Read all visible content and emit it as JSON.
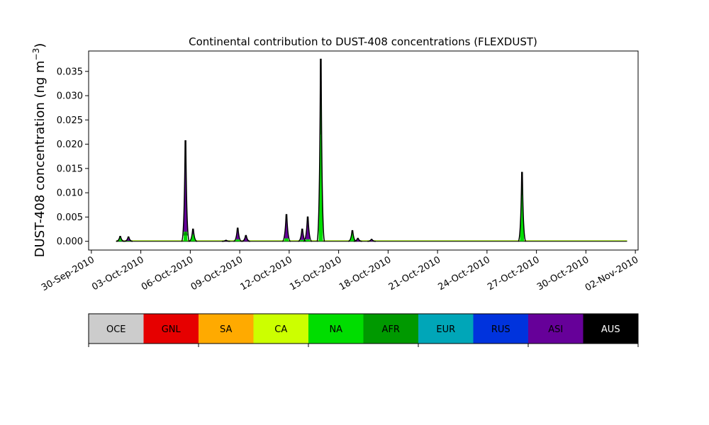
{
  "chart_data": {
    "type": "area",
    "title": "Continental contribution to DUST-408 concentrations (FLEXDUST)",
    "ylabel": "DUST-408 concentration (ng m",
    "ylabel_superscript": "−3",
    "ylabel_close": ")",
    "xlim": [
      "2010-09-29T20:00",
      "2010-11-02T04:00"
    ],
    "ylim": [
      -0.0018,
      0.0392
    ],
    "yticks": [
      0.0,
      0.005,
      0.01,
      0.015,
      0.02,
      0.025,
      0.03,
      0.035
    ],
    "ytick_labels": [
      "0.000",
      "0.005",
      "0.010",
      "0.015",
      "0.020",
      "0.025",
      "0.030",
      "0.035"
    ],
    "xticks": [
      "2010-09-30",
      "2010-10-03",
      "2010-10-06",
      "2010-10-09",
      "2010-10-12",
      "2010-10-15",
      "2010-10-18",
      "2010-10-21",
      "2010-10-24",
      "2010-10-27",
      "2010-10-30",
      "2010-11-02"
    ],
    "xtick_labels": [
      "30-Sep-2010",
      "03-Oct-2010",
      "06-Oct-2010",
      "09-Oct-2010",
      "12-Oct-2010",
      "15-Oct-2010",
      "18-Oct-2010",
      "21-Oct-2010",
      "24-Oct-2010",
      "27-Oct-2010",
      "30-Oct-2010",
      "02-Nov-2010"
    ],
    "series_start": "2010-10-01T12:00",
    "series_end": "2010-11-01T12:00",
    "peaks": [
      {
        "date": "2010-10-01T18:00",
        "total": 0.001,
        "NA": 0.0008,
        "ASI": 0.0001
      },
      {
        "date": "2010-10-02T06:00",
        "total": 0.0009,
        "NA": 0.0001,
        "ASI": 0.0007
      },
      {
        "date": "2010-10-05T17:00",
        "total": 0.0207,
        "NA": 0.0012,
        "AFR": 0.0008,
        "ASI": 0.0175
      },
      {
        "date": "2010-10-06T04:00",
        "total": 0.0025,
        "NA": 0.0015,
        "ASI": 0.0007
      },
      {
        "date": "2010-10-08T04:00",
        "total": 0.0002,
        "ASI": 0.0002
      },
      {
        "date": "2010-10-08T21:00",
        "total": 0.0027,
        "NA": 0.0004,
        "ASI": 0.0022
      },
      {
        "date": "2010-10-09T09:00",
        "total": 0.0012,
        "ASI": 0.0011
      },
      {
        "date": "2010-10-11T20:00",
        "total": 0.0055,
        "NA": 0.0006,
        "ASI": 0.0047
      },
      {
        "date": "2010-10-12T19:00",
        "total": 0.0025,
        "NA": 0.0003,
        "ASI": 0.002
      },
      {
        "date": "2010-10-13T03:00",
        "total": 0.005,
        "NA": 0.0004,
        "ASI": 0.0044
      },
      {
        "date": "2010-10-13T22:00",
        "total": 0.0375,
        "NA": 0.022,
        "AFR": 0.008,
        "RUS": 0.0025,
        "ASI": 0.004
      },
      {
        "date": "2010-10-15T20:00",
        "total": 0.0022,
        "NA": 0.0018,
        "ASI": 0.0003
      },
      {
        "date": "2010-10-16T04:00",
        "total": 0.0006,
        "ASI": 0.0005
      },
      {
        "date": "2010-10-17T00:00",
        "total": 0.0004,
        "ASI": 0.0003
      },
      {
        "date": "2010-10-26T03:00",
        "total": 0.0142,
        "NA": 0.0095,
        "AFR": 0.003,
        "ASI": 0.0008
      }
    ],
    "legend": {
      "labels": [
        "OCE",
        "GNL",
        "SA",
        "CA",
        "NA",
        "AFR",
        "EUR",
        "RUS",
        "ASI",
        "AUS"
      ],
      "colors": [
        "#cccccc",
        "#e60000",
        "#ffaa00",
        "#ccff00",
        "#00dd00",
        "#009900",
        "#00a6b8",
        "#0033dd",
        "#660099",
        "#000000"
      ],
      "text_colors": [
        "#000000",
        "#000000",
        "#000000",
        "#000000",
        "#000000",
        "#000000",
        "#000000",
        "#000000",
        "#000000",
        "#ffffff"
      ]
    },
    "grid": false,
    "legend_placement": "below"
  }
}
